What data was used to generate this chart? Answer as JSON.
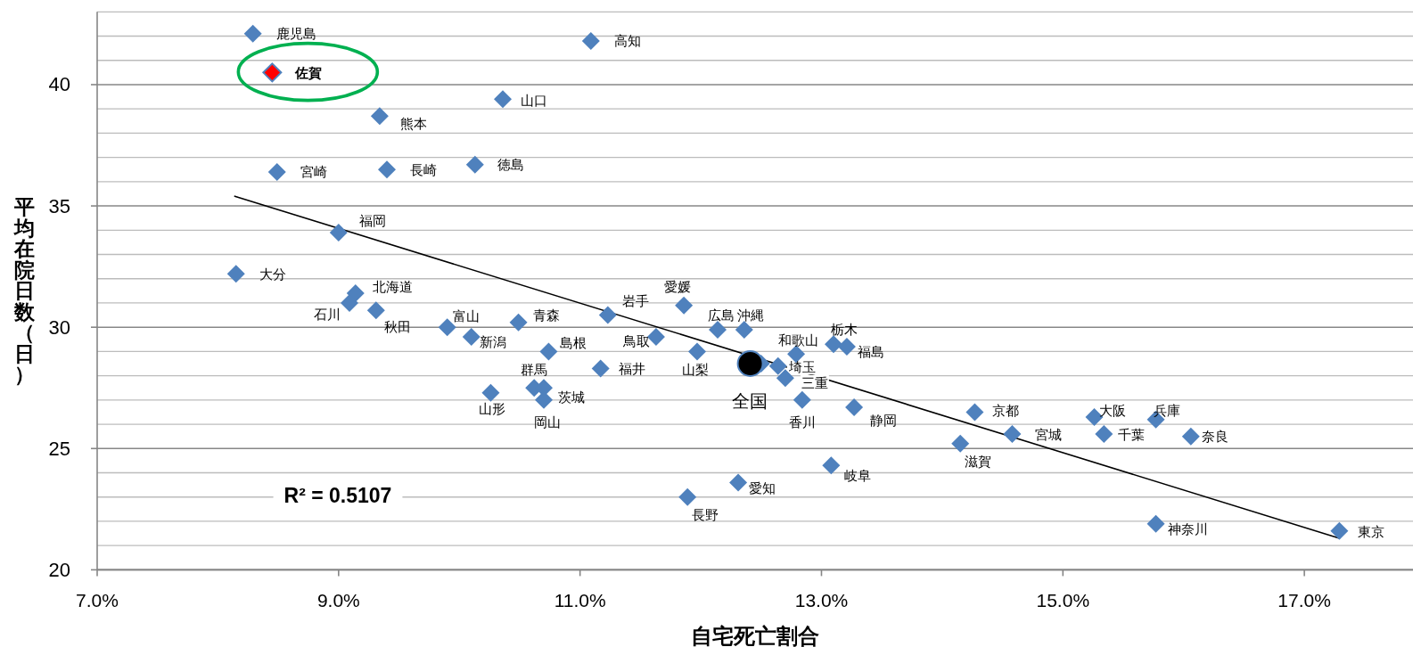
{
  "chart_data": {
    "type": "scatter",
    "xlabel": "自宅死亡割合",
    "ylabel": "平均在院日数（日）",
    "xlim": [
      7,
      17.9
    ],
    "ylim": [
      20,
      43
    ],
    "xticks": [
      {
        "value": 7,
        "label": "7.0%"
      },
      {
        "value": 9,
        "label": "9.0%"
      },
      {
        "value": 11,
        "label": "11.0%"
      },
      {
        "value": 13,
        "label": "13.0%"
      },
      {
        "value": 15,
        "label": "15.0%"
      },
      {
        "value": 17,
        "label": "17.0%"
      }
    ],
    "yticks": [
      20,
      {
        "value": 21,
        "label": null
      },
      {
        "value": 22,
        "label": null
      },
      {
        "value": 23,
        "label": null
      },
      {
        "value": 24,
        "label": null
      },
      25,
      {
        "value": 26,
        "label": null
      },
      {
        "value": 27,
        "label": null
      },
      {
        "value": 28,
        "label": null
      },
      {
        "value": 29,
        "label": null
      },
      30,
      {
        "value": 31,
        "label": null
      },
      {
        "value": 32,
        "label": null
      },
      {
        "value": 33,
        "label": null
      },
      {
        "value": 34,
        "label": null
      },
      35,
      {
        "value": 36,
        "label": null
      },
      {
        "value": 37,
        "label": null
      },
      {
        "value": 38,
        "label": null
      },
      {
        "value": 39,
        "label": null
      },
      40,
      {
        "value": 41,
        "label": null
      },
      {
        "value": 42,
        "label": null
      },
      {
        "value": 43,
        "label": null
      }
    ],
    "grid": "y",
    "series": [
      {
        "color": "#4f81bd",
        "marker": "diamond",
        "x": [
          8.29,
          11.09,
          10.36,
          9.34,
          8.49,
          9.4,
          10.13,
          9.0,
          8.15,
          9.14,
          9.09,
          9.31,
          9.9,
          10.1,
          10.49,
          10.74,
          10.62,
          10.7,
          10.26,
          10.7,
          11.23,
          11.86,
          12.14,
          12.36,
          11.63,
          11.97,
          11.17,
          12.79,
          13.1,
          13.21,
          12.64,
          12.7,
          12.84,
          13.27,
          14.27,
          14.58,
          14.15,
          13.08,
          12.31,
          11.89,
          15.26,
          15.77,
          15.34,
          16.06,
          15.77,
          17.29,
          12.5
        ],
        "values": [
          42.1,
          41.8,
          39.4,
          38.7,
          36.4,
          36.5,
          36.7,
          33.9,
          32.2,
          31.4,
          31.0,
          30.7,
          30.0,
          29.6,
          30.2,
          29.0,
          27.5,
          27.5,
          27.3,
          27.0,
          30.5,
          30.9,
          29.9,
          29.9,
          29.6,
          29.0,
          28.3,
          28.9,
          29.3,
          29.2,
          28.4,
          27.9,
          27.0,
          26.7,
          26.5,
          25.6,
          25.2,
          24.3,
          23.6,
          23.0,
          26.3,
          26.2,
          25.6,
          25.5,
          21.9,
          21.6,
          28.5
        ]
      },
      {
        "name": "佐賀",
        "color": "#ff0000",
        "marker": "diamond",
        "x": [
          8.45
        ],
        "values": [
          40.5
        ]
      },
      {
        "type": "line",
        "color": "#000000",
        "marker": "none",
        "x": [
          8.14,
          17.29
        ],
        "values": [
          35.4,
          21.3
        ]
      },
      {
        "name": "全国",
        "color": "#000000",
        "marker": "circle",
        "x": [
          12.41
        ],
        "values": [
          28.5
        ]
      }
    ],
    "annotations": [
      {
        "text": "鹿児島",
        "x": 8.29,
        "y": 42.1
      },
      {
        "text": "高知",
        "x": 11.09,
        "y": 41.8
      },
      {
        "text": "山口",
        "x": 10.36,
        "y": 39.4
      },
      {
        "text": "熊本",
        "x": 9.34,
        "y": 38.7
      },
      {
        "text": "宮崎",
        "x": 8.49,
        "y": 36.4
      },
      {
        "text": "長崎",
        "x": 9.4,
        "y": 36.5
      },
      {
        "text": "徳島",
        "x": 10.13,
        "y": 36.7
      },
      {
        "text": "福岡",
        "x": 9.0,
        "y": 33.9
      },
      {
        "text": "大分",
        "x": 8.15,
        "y": 32.2
      },
      {
        "text": "北海道",
        "x": 9.14,
        "y": 31.4
      },
      {
        "text": "石川",
        "x": 9.09,
        "y": 31.0
      },
      {
        "text": "秋田",
        "x": 9.31,
        "y": 30.7
      },
      {
        "text": "富山",
        "x": 9.9,
        "y": 30.0
      },
      {
        "text": "新潟",
        "x": 10.1,
        "y": 29.6
      },
      {
        "text": "青森",
        "x": 10.49,
        "y": 30.2
      },
      {
        "text": "島根",
        "x": 10.74,
        "y": 29.0
      },
      {
        "text": "群馬",
        "x": 10.62,
        "y": 27.5
      },
      {
        "text": "茨城",
        "x": 10.7,
        "y": 27.5
      },
      {
        "text": "山形",
        "x": 10.26,
        "y": 27.3
      },
      {
        "text": "岡山",
        "x": 10.7,
        "y": 27.0
      },
      {
        "text": "岩手",
        "x": 11.23,
        "y": 30.5
      },
      {
        "text": "愛媛",
        "x": 11.86,
        "y": 30.9
      },
      {
        "text": "広島",
        "x": 12.14,
        "y": 29.9
      },
      {
        "text": "沖縄",
        "x": 12.36,
        "y": 29.9
      },
      {
        "text": "鳥取",
        "x": 11.63,
        "y": 29.6
      },
      {
        "text": "山梨",
        "x": 11.97,
        "y": 29.0
      },
      {
        "text": "福井",
        "x": 11.17,
        "y": 28.3
      },
      {
        "text": "和歌山",
        "x": 12.79,
        "y": 28.9
      },
      {
        "text": "栃木",
        "x": 13.1,
        "y": 29.3
      },
      {
        "text": "福島",
        "x": 13.21,
        "y": 29.2
      },
      {
        "text": "埼玉",
        "x": 12.64,
        "y": 28.4
      },
      {
        "text": "三重",
        "x": 12.7,
        "y": 27.9
      },
      {
        "text": "香川",
        "x": 12.84,
        "y": 27.0
      },
      {
        "text": "静岡",
        "x": 13.27,
        "y": 26.7
      },
      {
        "text": "京都",
        "x": 14.27,
        "y": 26.5
      },
      {
        "text": "宮城",
        "x": 14.58,
        "y": 25.6
      },
      {
        "text": "滋賀",
        "x": 14.15,
        "y": 25.2
      },
      {
        "text": "岐阜",
        "x": 13.08,
        "y": 24.3
      },
      {
        "text": "愛知",
        "x": 12.31,
        "y": 23.6
      },
      {
        "text": "長野",
        "x": 11.89,
        "y": 23.0
      },
      {
        "text": "大阪",
        "x": 15.26,
        "y": 26.3
      },
      {
        "text": "兵庫",
        "x": 15.77,
        "y": 26.2
      },
      {
        "text": "千葉",
        "x": 15.34,
        "y": 25.6
      },
      {
        "text": "奈良",
        "x": 16.06,
        "y": 25.5
      },
      {
        "text": "神奈川",
        "x": 15.77,
        "y": 21.9
      },
      {
        "text": "東京",
        "x": 17.29,
        "y": 21.6
      },
      "R² = 0.5107"
    ]
  }
}
